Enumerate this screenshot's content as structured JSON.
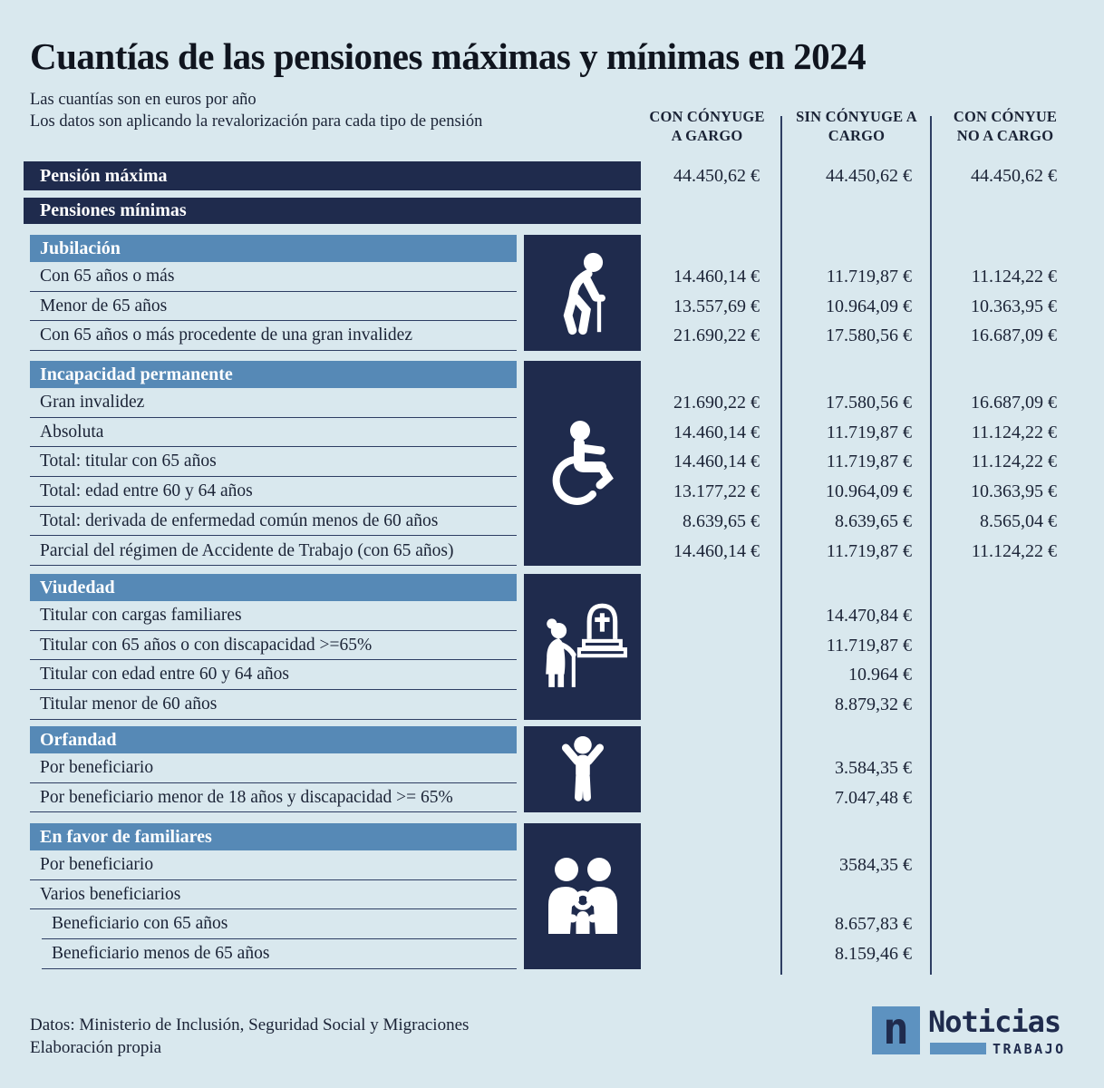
{
  "page": {
    "title": "Cuantías de las pensiones máximas y mínimas en 2024",
    "subtitle": "Las cuantías son en euros por año\nLos datos son aplicando la revalorización para cada tipo de pensión",
    "footer": "Datos: Ministerio de Inclusión, Seguridad Social y Migraciones\nElaboración propia"
  },
  "colors": {
    "background": "#d9e8ee",
    "navy": "#1f2b4d",
    "section_blue": "#5689b6",
    "logo_blue": "#5d92c0"
  },
  "columns": [
    {
      "label": "CON CÓNYUGE\nA GARGO"
    },
    {
      "label": "SIN CÓNYUGE A\nCARGO"
    },
    {
      "label": "CON CÓNYUE\nNO A CARGO"
    }
  ],
  "max_pension": {
    "label": "Pensión máxima",
    "values": [
      "44.450,62 €",
      "44.450,62 €",
      "44.450,62 €"
    ]
  },
  "min_pensions_label": "Pensiones mínimas",
  "sections": [
    {
      "title": "Jubilación",
      "icon": "elderly-person-icon",
      "rows": [
        {
          "label": "Con 65 años o más",
          "values": [
            "14.460,14 €",
            "11.719,87 €",
            "11.124,22 €"
          ]
        },
        {
          "label": "Menor de 65 años",
          "values": [
            "13.557,69 €",
            "10.964,09 €",
            "10.363,95 €"
          ]
        },
        {
          "label": "Con 65 años o más procedente de una gran invalidez",
          "values": [
            "21.690,22 €",
            "17.580,56 €",
            "16.687,09 €"
          ]
        }
      ]
    },
    {
      "title": "Incapacidad permanente",
      "icon": "wheelchair-icon",
      "rows": [
        {
          "label": "Gran invalidez",
          "values": [
            "21.690,22 €",
            "17.580,56 €",
            "16.687,09 €"
          ]
        },
        {
          "label": "Absoluta",
          "values": [
            "14.460,14 €",
            "11.719,87 €",
            "11.124,22 €"
          ]
        },
        {
          "label": "Total: titular con 65 años",
          "values": [
            "14.460,14 €",
            "11.719,87 €",
            "11.124,22 €"
          ]
        },
        {
          "label": "Total: edad entre 60 y 64 años",
          "values": [
            "13.177,22 €",
            "10.964,09 €",
            "10.363,95 €"
          ]
        },
        {
          "label": "Total: derivada de enfermedad común menos de 60 años",
          "values": [
            "8.639,65 €",
            "8.639,65 €",
            "8.565,04 €"
          ]
        },
        {
          "label": "Parcial del régimen de Accidente de Trabajo (con 65 años)",
          "values": [
            "14.460,14 €",
            "11.719,87 €",
            "11.124,22 €"
          ]
        }
      ]
    },
    {
      "title": "Viudedad",
      "icon": "widow-grave-icon",
      "rows": [
        {
          "label": "Titular con cargas familiares",
          "values": [
            "",
            "14.470,84 €",
            ""
          ]
        },
        {
          "label": "Titular con 65 años o con discapacidad >=65%",
          "values": [
            "",
            "11.719,87 €",
            ""
          ]
        },
        {
          "label": "Titular con edad entre 60 y 64 años",
          "values": [
            "",
            "10.964 €",
            ""
          ]
        },
        {
          "label": "Titular menor de 60 años",
          "values": [
            "",
            "8.879,32 €",
            ""
          ]
        }
      ]
    },
    {
      "title": "Orfandad",
      "icon": "child-icon",
      "rows": [
        {
          "label": "Por beneficiario",
          "values": [
            "",
            "3.584,35 €",
            ""
          ]
        },
        {
          "label": "Por beneficiario menor de 18 años y discapacidad >= 65%",
          "values": [
            "",
            "7.047,48 €",
            ""
          ]
        }
      ]
    },
    {
      "title": "En favor de familiares",
      "icon": "family-icon",
      "rows": [
        {
          "label": "Por beneficiario",
          "values": [
            "",
            "3584,35 €",
            ""
          ]
        },
        {
          "label": "Varios beneficiarios",
          "values": [
            "",
            "",
            ""
          ]
        },
        {
          "label": "Beneficiario con 65 años",
          "values": [
            "",
            "8.657,83 €",
            ""
          ],
          "indent": true
        },
        {
          "label": "Beneficiario menos de 65 años",
          "values": [
            "",
            "8.159,46 €",
            ""
          ],
          "indent": true
        }
      ]
    }
  ],
  "logo": {
    "mark": "n",
    "name": "Noticias",
    "tagline": "TRABAJO"
  }
}
